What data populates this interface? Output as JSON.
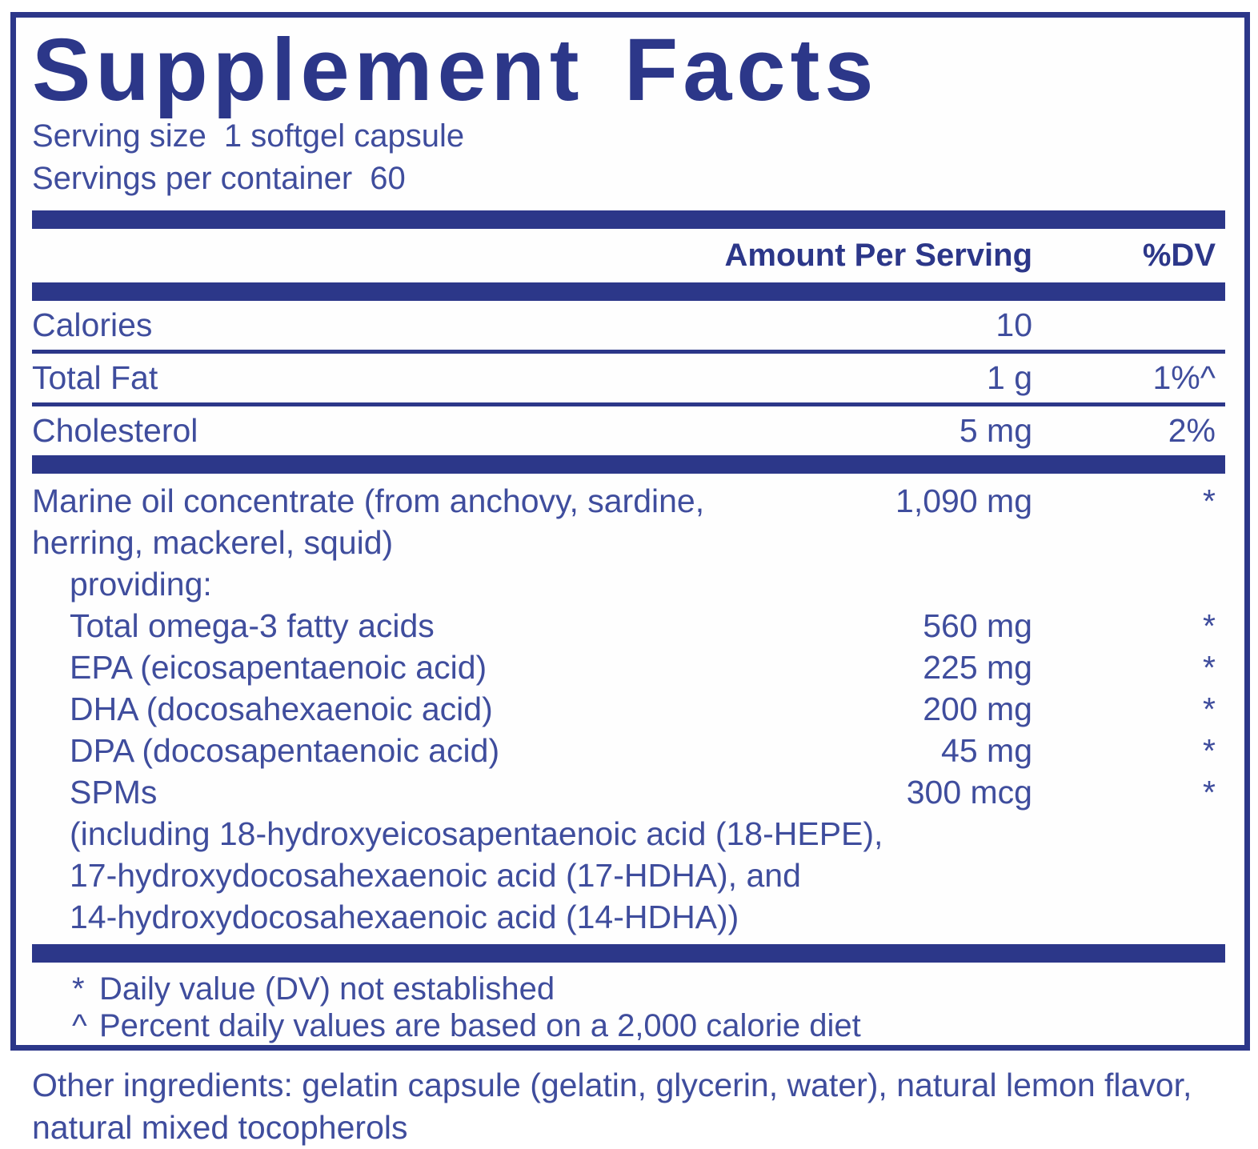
{
  "label": {
    "title": "Supplement Facts",
    "serving_size": {
      "label": "Serving size",
      "value": "1 softgel capsule"
    },
    "servings_per_container": {
      "label": "Servings per container",
      "value": "60"
    },
    "columns": {
      "amount": "Amount Per Serving",
      "dv": "%DV"
    },
    "rows": [
      {
        "name": "Calories",
        "amount": "10",
        "dv": ""
      },
      {
        "name": "Total Fat",
        "amount": "1 g",
        "dv": "1%^"
      },
      {
        "name": "Cholesterol",
        "amount": "5 mg",
        "dv": "2%"
      }
    ],
    "marine": {
      "name_line1": "Marine oil concentrate (from anchovy, sardine,",
      "name_line2": "herring, mackerel, squid)",
      "amount": "1,090 mg",
      "dv": "*",
      "providing_label": "providing:",
      "items": [
        {
          "name": "Total omega-3 fatty acids",
          "amount": "560 mg",
          "dv": "*"
        },
        {
          "name": "EPA (eicosapentaenoic acid)",
          "amount": "225 mg",
          "dv": "*"
        },
        {
          "name": "DHA (docosahexaenoic acid)",
          "amount": "200 mg",
          "dv": "*"
        },
        {
          "name": "DPA (docosapentaenoic acid)",
          "amount": "45 mg",
          "dv": "*"
        },
        {
          "name": "SPMs",
          "amount": "300 mcg",
          "dv": "*"
        }
      ],
      "including_lines": [
        "(including 18-hydroxyeicosapentaenoic acid (18-HEPE),",
        "17-hydroxydocosahexaenoic acid (17-HDHA), and",
        "14-hydroxydocosahexaenoic acid (14-HDHA))"
      ]
    },
    "footnotes": [
      {
        "symbol": "*",
        "text": "Daily value (DV) not established"
      },
      {
        "symbol": "^",
        "text": "Percent daily values are based on a 2,000 calorie diet"
      }
    ],
    "other_ingredients": {
      "line1": "Other ingredients: gelatin capsule (gelatin, glycerin, water), natural lemon flavor,",
      "line2": "natural mixed tocopherols"
    },
    "colors": {
      "navy": "#2c3789",
      "body_text": "#3f4d9d"
    }
  }
}
